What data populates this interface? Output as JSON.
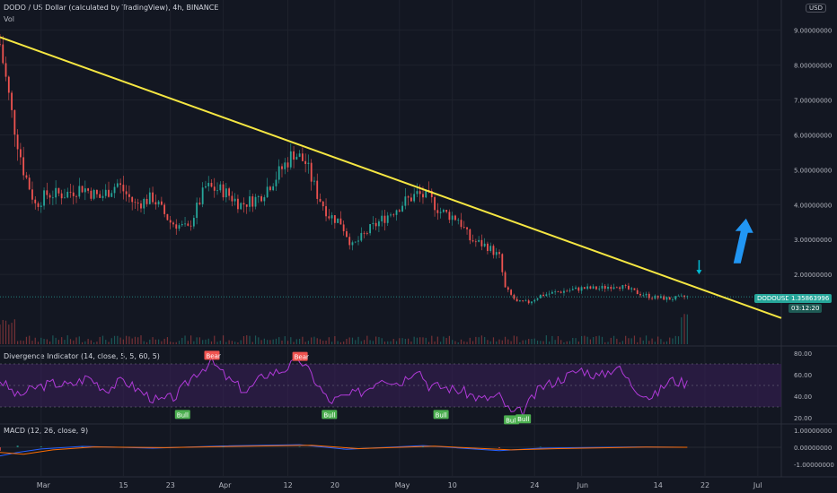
{
  "header": {
    "title": "DODO / US Dollar (calculated by TradingView), 4h, BINANCE",
    "vol_label": "Vol",
    "currency_button": "USD"
  },
  "price_badge": {
    "symbol": "DODOUSD",
    "price": "1.35863996",
    "countdown": "03:12:20"
  },
  "colors": {
    "background": "#131722",
    "up": "#26a69a",
    "down": "#ef5350",
    "trendline": "#f5e642",
    "rsi_line": "#b03ad8",
    "rsi_band": "#3a1f5a",
    "bull_label": "#4caf50",
    "bear_label": "#ef5350",
    "arrow_up": "#2196f3",
    "arrow_down": "#00bcd4",
    "macd_line": "#2962ff",
    "signal_line": "#ff6d00"
  },
  "chart_data": [
    {
      "type": "candlestick",
      "title": "DODO / US Dollar (calculated by TradingView), 4h, BINANCE",
      "x_ticks": [
        "Mar",
        "15",
        "23",
        "Apr",
        "12",
        "20",
        "May",
        "10",
        "24",
        "Jun",
        "14",
        "22",
        "Jul"
      ],
      "y_ticks": [
        "9.00000000",
        "8.00000000",
        "7.00000000",
        "6.00000000",
        "5.00000000",
        "4.00000000",
        "3.00000000",
        "2.00000000"
      ],
      "ylim": [
        0,
        9.3
      ],
      "xlim": [
        "2021-02-22",
        "2021-07-05"
      ],
      "last_price": 1.35863996,
      "closes": [
        [
          "2021-02-22",
          8.6
        ],
        [
          "2021-02-24",
          6.6
        ],
        [
          "2021-02-26",
          5.0
        ],
        [
          "2021-02-28",
          4.0
        ],
        [
          "2021-03-02",
          4.3
        ],
        [
          "2021-03-05",
          4.3
        ],
        [
          "2021-03-08",
          4.5
        ],
        [
          "2021-03-11",
          4.2
        ],
        [
          "2021-03-14",
          4.6
        ],
        [
          "2021-03-17",
          4.0
        ],
        [
          "2021-03-20",
          4.2
        ],
        [
          "2021-03-23",
          3.5
        ],
        [
          "2021-03-26",
          3.3
        ],
        [
          "2021-03-29",
          4.5
        ],
        [
          "2021-04-01",
          4.4
        ],
        [
          "2021-04-04",
          4.0
        ],
        [
          "2021-04-07",
          4.2
        ],
        [
          "2021-04-10",
          4.8
        ],
        [
          "2021-04-13",
          5.5
        ],
        [
          "2021-04-15",
          5.2
        ],
        [
          "2021-04-17",
          4.3
        ],
        [
          "2021-04-19",
          3.7
        ],
        [
          "2021-04-21",
          3.5
        ],
        [
          "2021-04-23",
          2.8
        ],
        [
          "2021-04-26",
          3.3
        ],
        [
          "2021-04-29",
          3.7
        ],
        [
          "2021-05-02",
          4.1
        ],
        [
          "2021-05-04",
          4.3
        ],
        [
          "2021-05-06",
          4.2
        ],
        [
          "2021-05-08",
          3.8
        ],
        [
          "2021-05-11",
          3.6
        ],
        [
          "2021-05-13",
          3.0
        ],
        [
          "2021-05-16",
          2.8
        ],
        [
          "2021-05-18",
          2.5
        ],
        [
          "2021-05-19",
          1.6
        ],
        [
          "2021-05-21",
          1.2
        ],
        [
          "2021-05-23",
          1.2
        ],
        [
          "2021-05-25",
          1.4
        ],
        [
          "2021-05-28",
          1.5
        ],
        [
          "2021-06-01",
          1.6
        ],
        [
          "2021-06-04",
          1.6
        ],
        [
          "2021-06-07",
          1.7
        ],
        [
          "2021-06-10",
          1.5
        ],
        [
          "2021-06-13",
          1.35
        ],
        [
          "2021-06-16",
          1.3
        ],
        [
          "2021-06-19",
          1.36
        ]
      ],
      "trendline": {
        "start": [
          "2021-02-22",
          8.8
        ],
        "end": [
          "2021-07-05",
          0.75
        ]
      },
      "annotations": {
        "arrow_up": [
          "2021-06-29",
          3.5
        ],
        "arrow_down": [
          "2021-06-21",
          2.0
        ]
      }
    },
    {
      "type": "line",
      "title": "Divergence Indicator (14, close, 5, 5, 60, 5)",
      "y_ticks": [
        "80.00",
        "60.00",
        "40.00",
        "20.00"
      ],
      "ylim": [
        15,
        85
      ],
      "band": [
        30,
        70
      ],
      "midline": 50,
      "values": [
        [
          "2021-02-22",
          55
        ],
        [
          "2021-02-25",
          40
        ],
        [
          "2021-02-28",
          48
        ],
        [
          "2021-03-03",
          52
        ],
        [
          "2021-03-06",
          50
        ],
        [
          "2021-03-09",
          58
        ],
        [
          "2021-03-12",
          46
        ],
        [
          "2021-03-15",
          55
        ],
        [
          "2021-03-18",
          44
        ],
        [
          "2021-03-21",
          35
        ],
        [
          "2021-03-24",
          40
        ],
        [
          "2021-03-27",
          60
        ],
        [
          "2021-03-30",
          72
        ],
        [
          "2021-04-02",
          55
        ],
        [
          "2021-04-05",
          44
        ],
        [
          "2021-04-08",
          60
        ],
        [
          "2021-04-11",
          64
        ],
        [
          "2021-04-14",
          74
        ],
        [
          "2021-04-16",
          60
        ],
        [
          "2021-04-19",
          35
        ],
        [
          "2021-04-22",
          40
        ],
        [
          "2021-04-25",
          45
        ],
        [
          "2021-04-28",
          58
        ],
        [
          "2021-05-01",
          52
        ],
        [
          "2021-05-04",
          67
        ],
        [
          "2021-05-06",
          50
        ],
        [
          "2021-05-09",
          48
        ],
        [
          "2021-05-12",
          44
        ],
        [
          "2021-05-15",
          37
        ],
        [
          "2021-05-18",
          40
        ],
        [
          "2021-05-20",
          24
        ],
        [
          "2021-05-22",
          26
        ],
        [
          "2021-05-25",
          48
        ],
        [
          "2021-05-28",
          55
        ],
        [
          "2021-06-01",
          65
        ],
        [
          "2021-06-04",
          58
        ],
        [
          "2021-06-07",
          68
        ],
        [
          "2021-06-10",
          48
        ],
        [
          "2021-06-13",
          38
        ],
        [
          "2021-06-16",
          55
        ],
        [
          "2021-06-19",
          52
        ]
      ],
      "labels": [
        {
          "text": "Bear",
          "at": [
            "2021-03-30",
            78
          ]
        },
        {
          "text": "Bear",
          "at": [
            "2021-04-14",
            77
          ]
        },
        {
          "text": "Bull",
          "at": [
            "2021-03-25",
            23
          ]
        },
        {
          "text": "Bull",
          "at": [
            "2021-04-19",
            23
          ]
        },
        {
          "text": "Bull",
          "at": [
            "2021-05-08",
            23
          ]
        },
        {
          "text": "Bull",
          "at": [
            "2021-05-20",
            18
          ]
        },
        {
          "text": "Bull",
          "at": [
            "2021-05-22",
            19
          ]
        }
      ]
    },
    {
      "type": "line",
      "title": "MACD (12, 26, close, 9)",
      "y_ticks": [
        "1.00000000",
        "0.00000000",
        "-1.00000000"
      ],
      "ylim": [
        -1.3,
        1.3
      ],
      "series": [
        {
          "values": [
            [
              "2021-02-22",
              -0.5
            ],
            [
              "2021-02-25",
              -0.3
            ],
            [
              "2021-03-01",
              -0.1
            ],
            [
              "2021-03-08",
              0.05
            ],
            [
              "2021-03-20",
              -0.05
            ],
            [
              "2021-04-01",
              0.08
            ],
            [
              "2021-04-14",
              0.15
            ],
            [
              "2021-04-22",
              -0.12
            ],
            [
              "2021-05-05",
              0.1
            ],
            [
              "2021-05-18",
              -0.2
            ],
            [
              "2021-05-25",
              -0.05
            ],
            [
              "2021-06-10",
              0.02
            ],
            [
              "2021-06-19",
              0.0
            ]
          ]
        },
        {
          "values": [
            [
              "2021-02-22",
              -0.3
            ],
            [
              "2021-02-26",
              -0.4
            ],
            [
              "2021-03-03",
              -0.15
            ],
            [
              "2021-03-10",
              0.02
            ],
            [
              "2021-03-22",
              -0.02
            ],
            [
              "2021-04-03",
              0.05
            ],
            [
              "2021-04-16",
              0.12
            ],
            [
              "2021-04-24",
              -0.08
            ],
            [
              "2021-05-07",
              0.06
            ],
            [
              "2021-05-20",
              -0.15
            ],
            [
              "2021-05-28",
              -0.08
            ],
            [
              "2021-06-12",
              0.01
            ],
            [
              "2021-06-19",
              0.0
            ]
          ]
        }
      ]
    }
  ]
}
